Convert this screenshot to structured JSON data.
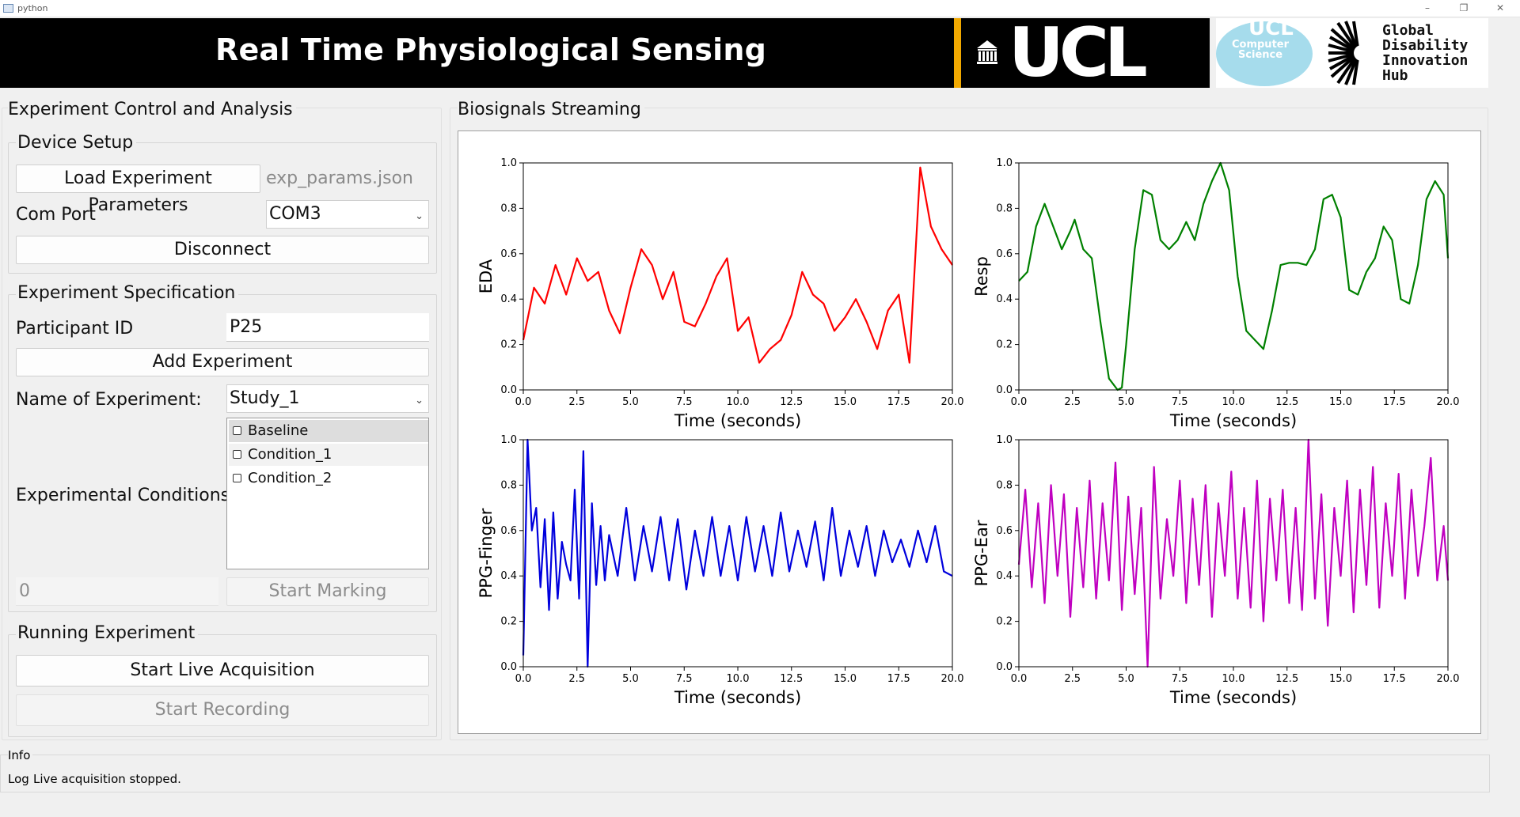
{
  "window": {
    "title": "python",
    "minimize": "–",
    "restore": "❐",
    "close": "✕"
  },
  "banner": {
    "title": "Real Time Physiological Sensing",
    "ucl_logo": "UCL",
    "cs_logo_top": "UCL",
    "cs_logo_text": "Computer Science",
    "gdi_logo_text": [
      "Global",
      "Disability",
      "Innovation",
      "Hub"
    ]
  },
  "left": {
    "title": "Experiment Control and Analysis",
    "device_setup": {
      "title": "Device Setup",
      "load_button": "Load Experiment Parameters",
      "params_file": "exp_params.json",
      "com_port_label": "Com Port",
      "com_port_value": "COM3",
      "disconnect_button": "Disconnect"
    },
    "experiment_spec": {
      "title": "Experiment Specification",
      "participant_label": "Participant ID",
      "participant_value": "P25",
      "add_experiment_button": "Add Experiment",
      "experiment_name_label": "Name of Experiment:",
      "experiment_name_value": "Study_1",
      "conditions_label": "Experimental Conditions",
      "conditions": [
        "Baseline",
        "Condition_1",
        "Condition_2"
      ],
      "marker_value": "0",
      "start_marking_button": "Start Marking"
    },
    "running": {
      "title": "Running Experiment",
      "start_live_button": "Start Live Acquisition",
      "start_recording_button": "Start Recording"
    }
  },
  "right": {
    "title": "Biosignals Streaming"
  },
  "info": {
    "title": "Info",
    "log_label": "Log",
    "log_message": "Live acquisition stopped."
  },
  "chart_data": [
    {
      "type": "line",
      "ylabel": "EDA",
      "xlabel": "Time (seconds)",
      "color": "#ff0000",
      "xlim": [
        0,
        20
      ],
      "ylim": [
        0,
        1
      ],
      "xticks": [
        "0.0",
        "2.5",
        "5.0",
        "7.5",
        "10.0",
        "12.5",
        "15.0",
        "17.5",
        "20.0"
      ],
      "yticks": [
        "0.0",
        "0.2",
        "0.4",
        "0.6",
        "0.8",
        "1.0"
      ],
      "x": [
        0,
        0.5,
        1,
        1.5,
        2,
        2.5,
        3,
        3.5,
        4,
        4.5,
        5,
        5.5,
        6,
        6.5,
        7,
        7.5,
        8,
        8.5,
        9,
        9.5,
        10,
        10.5,
        11,
        11.5,
        12,
        12.5,
        13,
        13.5,
        14,
        14.5,
        15,
        15.5,
        16,
        16.5,
        17,
        17.5,
        18,
        18.5,
        19,
        19.5,
        20
      ],
      "y": [
        0.22,
        0.45,
        0.38,
        0.55,
        0.42,
        0.58,
        0.48,
        0.52,
        0.35,
        0.25,
        0.45,
        0.62,
        0.55,
        0.4,
        0.52,
        0.3,
        0.28,
        0.38,
        0.5,
        0.58,
        0.26,
        0.32,
        0.12,
        0.18,
        0.22,
        0.33,
        0.52,
        0.42,
        0.38,
        0.26,
        0.32,
        0.4,
        0.3,
        0.18,
        0.35,
        0.42,
        0.12,
        0.98,
        0.72,
        0.62,
        0.55
      ]
    },
    {
      "type": "line",
      "ylabel": "Resp",
      "xlabel": "Time (seconds)",
      "color": "#008000",
      "xlim": [
        0,
        20
      ],
      "ylim": [
        0,
        1
      ],
      "xticks": [
        "0.0",
        "2.5",
        "5.0",
        "7.5",
        "10.0",
        "12.5",
        "15.0",
        "17.5",
        "20.0"
      ],
      "yticks": [
        "0.0",
        "0.2",
        "0.4",
        "0.6",
        "0.8",
        "1.0"
      ],
      "x": [
        0,
        0.4,
        0.8,
        1.2,
        1.6,
        2,
        2.4,
        2.6,
        3,
        3.4,
        3.8,
        4.2,
        4.6,
        4.8,
        5,
        5.4,
        5.8,
        6.2,
        6.6,
        7,
        7.4,
        7.8,
        8.2,
        8.6,
        9,
        9.4,
        9.8,
        10.2,
        10.6,
        11,
        11.4,
        11.8,
        12.2,
        12.6,
        13,
        13.4,
        13.8,
        14.2,
        14.6,
        15,
        15.4,
        15.8,
        16.2,
        16.6,
        17,
        17.4,
        17.8,
        18.2,
        18.6,
        19,
        19.4,
        19.8,
        20
      ],
      "y": [
        0.48,
        0.52,
        0.72,
        0.82,
        0.72,
        0.62,
        0.7,
        0.75,
        0.62,
        0.58,
        0.3,
        0.05,
        0.0,
        0.01,
        0.2,
        0.62,
        0.88,
        0.86,
        0.66,
        0.62,
        0.66,
        0.74,
        0.66,
        0.82,
        0.92,
        1.0,
        0.88,
        0.5,
        0.26,
        0.22,
        0.18,
        0.35,
        0.55,
        0.56,
        0.56,
        0.55,
        0.62,
        0.84,
        0.86,
        0.76,
        0.44,
        0.42,
        0.52,
        0.58,
        0.72,
        0.66,
        0.4,
        0.38,
        0.55,
        0.84,
        0.92,
        0.86,
        0.58
      ]
    },
    {
      "type": "line",
      "ylabel": "PPG-Finger",
      "xlabel": "Time (seconds)",
      "color": "#0000dd",
      "xlim": [
        0,
        20
      ],
      "ylim": [
        0,
        1
      ],
      "xticks": [
        "0.0",
        "2.5",
        "5.0",
        "7.5",
        "10.0",
        "12.5",
        "15.0",
        "17.5",
        "20.0"
      ],
      "yticks": [
        "0.0",
        "0.2",
        "0.4",
        "0.6",
        "0.8",
        "1.0"
      ],
      "x": [
        0,
        0.2,
        0.4,
        0.6,
        0.8,
        1.0,
        1.2,
        1.4,
        1.6,
        1.8,
        2.0,
        2.2,
        2.4,
        2.6,
        2.8,
        3.0,
        3.2,
        3.4,
        3.6,
        3.8,
        4.0,
        4.4,
        4.8,
        5.2,
        5.6,
        6.0,
        6.4,
        6.8,
        7.2,
        7.6,
        8.0,
        8.4,
        8.8,
        9.2,
        9.6,
        10.0,
        10.4,
        10.8,
        11.2,
        11.6,
        12.0,
        12.4,
        12.8,
        13.2,
        13.6,
        14.0,
        14.4,
        14.8,
        15.2,
        15.6,
        16.0,
        16.4,
        16.8,
        17.2,
        17.6,
        18.0,
        18.4,
        18.8,
        19.2,
        19.6,
        20.0
      ],
      "y": [
        0.05,
        1.0,
        0.6,
        0.7,
        0.35,
        0.65,
        0.25,
        0.68,
        0.3,
        0.55,
        0.45,
        0.38,
        0.78,
        0.3,
        0.95,
        0.0,
        0.72,
        0.36,
        0.62,
        0.38,
        0.58,
        0.4,
        0.7,
        0.38,
        0.62,
        0.42,
        0.66,
        0.38,
        0.65,
        0.34,
        0.6,
        0.4,
        0.66,
        0.4,
        0.62,
        0.38,
        0.66,
        0.42,
        0.62,
        0.4,
        0.68,
        0.42,
        0.6,
        0.44,
        0.64,
        0.38,
        0.7,
        0.4,
        0.6,
        0.44,
        0.62,
        0.4,
        0.6,
        0.46,
        0.56,
        0.44,
        0.6,
        0.46,
        0.62,
        0.42,
        0.4
      ]
    },
    {
      "type": "line",
      "ylabel": "PPG-Ear",
      "xlabel": "Time (seconds)",
      "color": "#c000c0",
      "xlim": [
        0,
        20
      ],
      "ylim": [
        0,
        1
      ],
      "xticks": [
        "0.0",
        "2.5",
        "5.0",
        "7.5",
        "10.0",
        "12.5",
        "15.0",
        "17.5",
        "20.0"
      ],
      "yticks": [
        "0.0",
        "0.2",
        "0.4",
        "0.6",
        "0.8",
        "1.0"
      ],
      "x": [
        0,
        0.3,
        0.6,
        0.9,
        1.2,
        1.5,
        1.8,
        2.1,
        2.4,
        2.7,
        3.0,
        3.3,
        3.6,
        3.9,
        4.2,
        4.5,
        4.8,
        5.1,
        5.4,
        5.7,
        6.0,
        6.3,
        6.6,
        6.9,
        7.2,
        7.5,
        7.8,
        8.1,
        8.4,
        8.7,
        9.0,
        9.3,
        9.6,
        9.9,
        10.2,
        10.5,
        10.8,
        11.1,
        11.4,
        11.7,
        12.0,
        12.3,
        12.6,
        12.9,
        13.2,
        13.5,
        13.8,
        14.1,
        14.4,
        14.7,
        15.0,
        15.3,
        15.6,
        15.9,
        16.2,
        16.5,
        16.8,
        17.1,
        17.4,
        17.7,
        18.0,
        18.3,
        18.6,
        18.9,
        19.2,
        19.5,
        19.8,
        20.0
      ],
      "y": [
        0.45,
        0.78,
        0.35,
        0.72,
        0.28,
        0.8,
        0.4,
        0.76,
        0.22,
        0.7,
        0.35,
        0.82,
        0.3,
        0.72,
        0.38,
        0.9,
        0.25,
        0.75,
        0.32,
        0.7,
        0.0,
        0.88,
        0.3,
        0.65,
        0.4,
        0.82,
        0.28,
        0.74,
        0.36,
        0.8,
        0.22,
        0.72,
        0.4,
        0.86,
        0.3,
        0.7,
        0.26,
        0.82,
        0.2,
        0.74,
        0.38,
        0.78,
        0.28,
        0.7,
        0.25,
        1.0,
        0.3,
        0.76,
        0.18,
        0.7,
        0.4,
        0.82,
        0.24,
        0.78,
        0.36,
        0.88,
        0.26,
        0.72,
        0.4,
        0.85,
        0.3,
        0.78,
        0.4,
        0.62,
        0.92,
        0.38,
        0.62,
        0.38
      ]
    }
  ]
}
